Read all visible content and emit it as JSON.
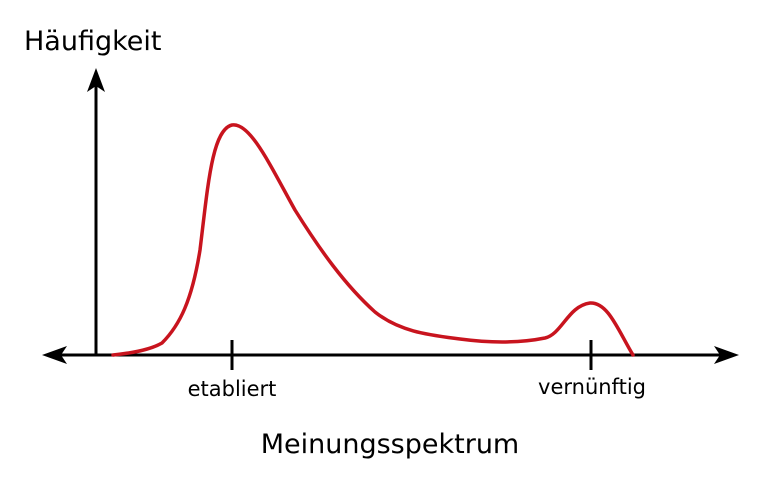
{
  "diagram": {
    "y_axis_label": "Häufigkeit",
    "x_axis_label": "Meinungsspektrum",
    "ticks": [
      {
        "label": "etabliert"
      },
      {
        "label": "vernünftig"
      }
    ],
    "curve_color": "#c8141e",
    "axis_color": "#000000"
  }
}
